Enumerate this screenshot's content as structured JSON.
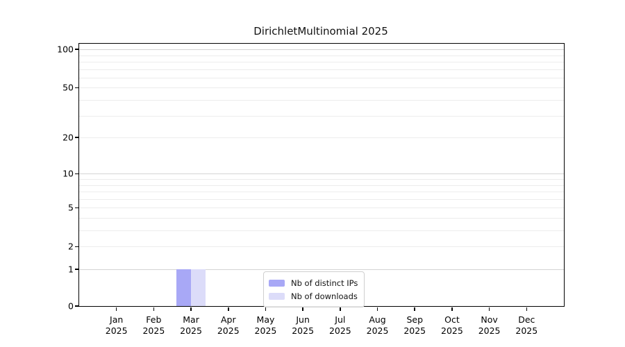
{
  "title": "DirichletMultinomial 2025",
  "chart_data": {
    "type": "bar",
    "title": "DirichletMultinomial 2025",
    "categories": [
      "Jan",
      "Feb",
      "Mar",
      "Apr",
      "May",
      "Jun",
      "Jul",
      "Aug",
      "Sep",
      "Oct",
      "Nov",
      "Dec"
    ],
    "category_year": "2025",
    "series": [
      {
        "name": "Nb of distinct IPs",
        "color": "#a8a8f6",
        "values": [
          0,
          0,
          1,
          0,
          0,
          0,
          0,
          0,
          0,
          0,
          0,
          0
        ]
      },
      {
        "name": "Nb of downloads",
        "color": "#dcdcf9",
        "values": [
          0,
          0,
          1,
          0,
          0,
          0,
          0,
          0,
          0,
          0,
          0,
          0
        ]
      }
    ],
    "xlabel": "",
    "ylabel": "",
    "yticks": [
      0,
      1,
      2,
      5,
      10,
      20,
      50,
      100
    ],
    "major_gridlines": [
      1,
      10,
      100
    ],
    "minor_gridlines": [
      2,
      3,
      4,
      5,
      6,
      7,
      8,
      9,
      20,
      30,
      40,
      50,
      60,
      70,
      80,
      90
    ],
    "scale": "log10(value+1)",
    "ylim": [
      0,
      110
    ],
    "grid": "horizontal",
    "legend_position": "bottom-center"
  }
}
